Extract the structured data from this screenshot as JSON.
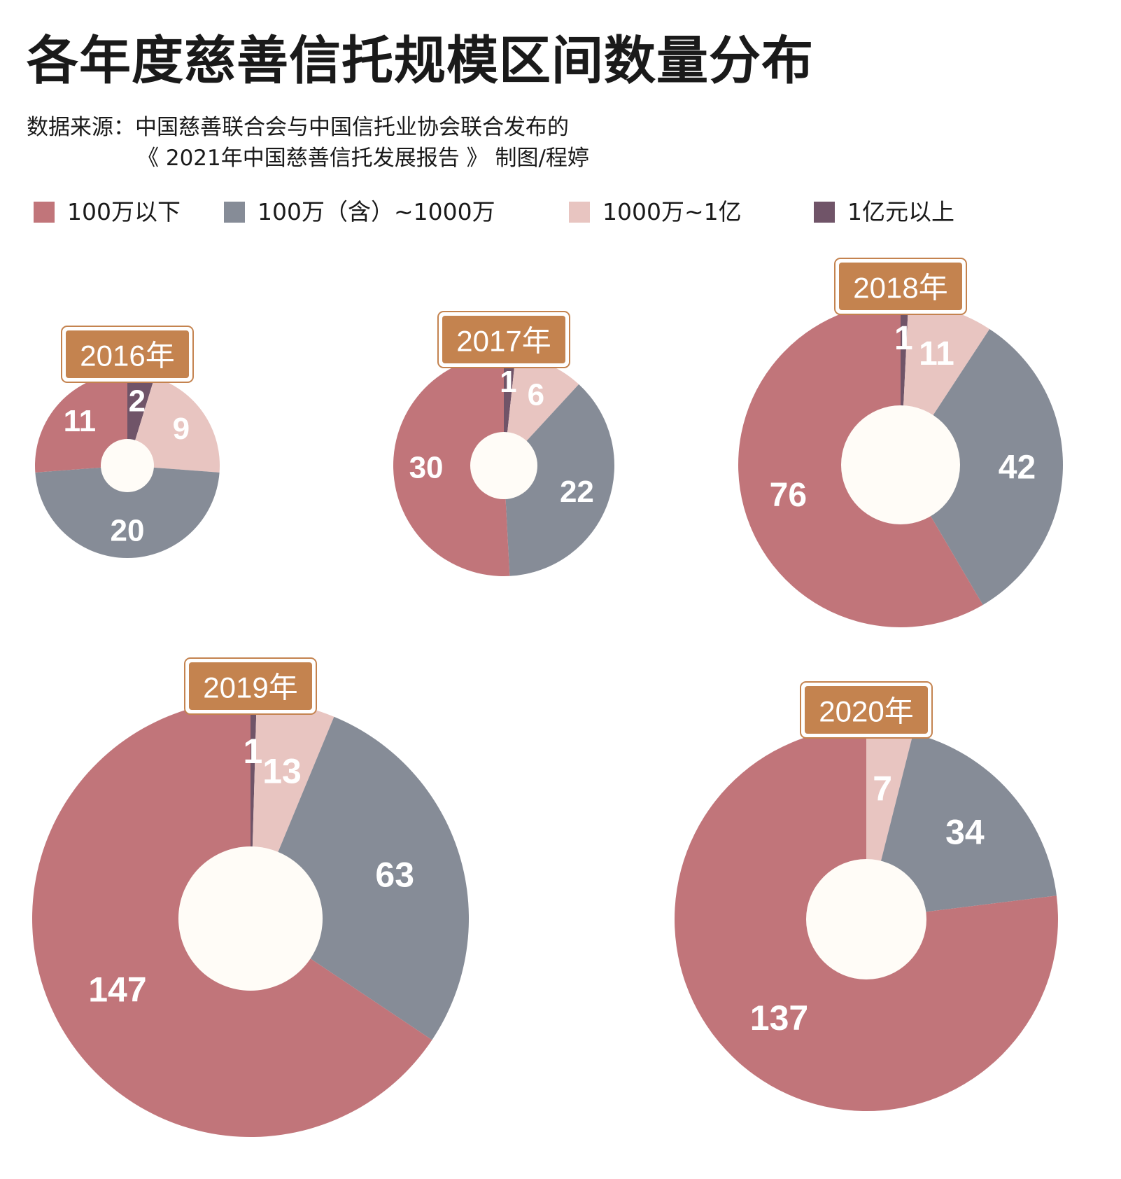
{
  "title": "各年度慈善信托规模区间数量分布",
  "source": {
    "line1": "数据来源：中国慈善联合会与中国信托业协会联合发布的",
    "line2": "《 2021年中国慈善信托发展报告 》  制图/程婷"
  },
  "legend": [
    {
      "label": "100万以下",
      "color": "#c1757a"
    },
    {
      "label": "100万（含）~1000万",
      "color": "#868c97"
    },
    {
      "label": "1000万~1亿",
      "color": "#e8c5c1"
    },
    {
      "label": "1亿元以上",
      "color": "#705468"
    }
  ],
  "colors": {
    "hole": "#fffcf7",
    "year_box": "#c4834f",
    "year_box_border": "#c4834f"
  },
  "chart_data": [
    {
      "type": "pie",
      "year_label": "2016年",
      "categories": [
        "100万以下",
        "100万（含）~1000万",
        "1000万~1亿",
        "1亿元以上"
      ],
      "values": [
        11,
        20,
        9,
        2
      ]
    },
    {
      "type": "pie",
      "year_label": "2017年",
      "categories": [
        "100万以下",
        "100万（含）~1000万",
        "1000万~1亿",
        "1亿元以上"
      ],
      "values": [
        30,
        22,
        6,
        1
      ]
    },
    {
      "type": "pie",
      "year_label": "2018年",
      "categories": [
        "100万以下",
        "100万（含）~1000万",
        "1000万~1亿",
        "1亿元以上"
      ],
      "values": [
        76,
        42,
        11,
        1
      ]
    },
    {
      "type": "pie",
      "year_label": "2019年",
      "categories": [
        "100万以下",
        "100万（含）~1000万",
        "1000万~1亿",
        "1亿元以上"
      ],
      "values": [
        147,
        63,
        13,
        1
      ]
    },
    {
      "type": "pie",
      "year_label": "2020年",
      "categories": [
        "100万以下",
        "100万（含）~1000万",
        "1000万~1亿",
        "1亿元以上"
      ],
      "values": [
        137,
        34,
        7,
        0
      ]
    }
  ]
}
